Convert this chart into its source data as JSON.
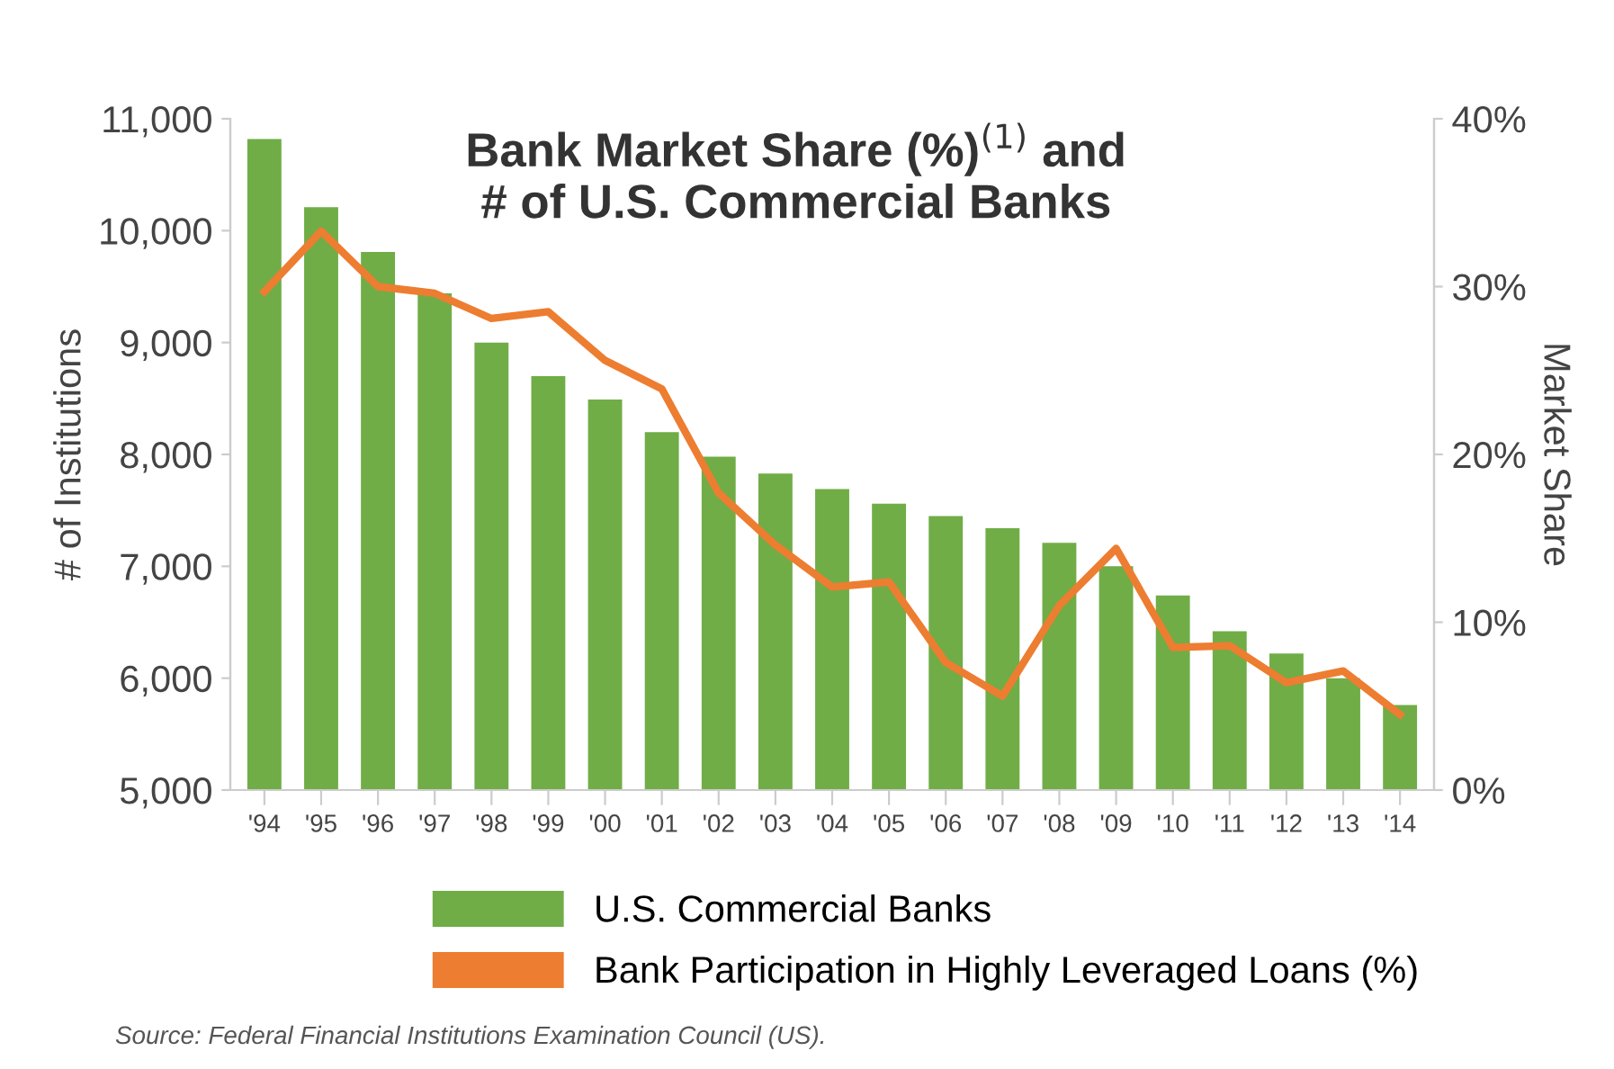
{
  "chart_data": {
    "type": "bar",
    "title": "Bank Market Share (%)$^{(1)}$ and\n# of U.S. Commercial Banks",
    "ylabel": "# of Institutions",
    "y2label": "Market Share",
    "categories": [
      "'94",
      "'95",
      "'96",
      "'97",
      "'98",
      "'99",
      "'00",
      "'01",
      "'02",
      "'03",
      "'04",
      "'05",
      "'06",
      "'07",
      "'08",
      "'09",
      "'10",
      "'11",
      "'12",
      "'13",
      "'14"
    ],
    "series": [
      {
        "name": "U.S. Commercial Banks",
        "color": "#70ad47",
        "values": [
          10820,
          10210,
          9810,
          9440,
          9000,
          8700,
          8490,
          8200,
          7980,
          7830,
          7690,
          7560,
          7450,
          7340,
          7210,
          7000,
          6740,
          6420,
          6220,
          6000,
          5760
        ]
      },
      {
        "name": "Bank Participation in Highly Leveraged Loans (%)",
        "type": "line",
        "axis": "y2",
        "color": "#ed7d31",
        "values": [
          29.7,
          33.3,
          30.0,
          29.6,
          28.1,
          28.5,
          25.6,
          23.9,
          17.7,
          14.6,
          12.1,
          12.4,
          7.6,
          5.6,
          11.0,
          14.4,
          8.5,
          8.6,
          6.4,
          7.1,
          4.5
        ]
      }
    ],
    "ylim": [
      5000,
      11000
    ],
    "yticks": [
      {
        "value": 5000,
        "label": "5,000"
      },
      {
        "value": 6000,
        "label": "6,000"
      },
      {
        "value": 7000,
        "label": "7,000"
      },
      {
        "value": 8000,
        "label": "8,000"
      },
      {
        "value": 9000,
        "label": "9,000"
      },
      {
        "value": 10000,
        "label": "10,000"
      },
      {
        "value": 11000,
        "label": "11,000"
      }
    ],
    "y2lim": [
      0,
      40
    ],
    "y2ticks": [
      {
        "value": 0,
        "label": "0%"
      },
      {
        "value": 10,
        "label": "10%"
      },
      {
        "value": 20,
        "label": "20%"
      },
      {
        "value": 30,
        "label": "30%"
      },
      {
        "value": 40,
        "label": "40%"
      }
    ],
    "grid": false,
    "legend": "bottom",
    "annotations": [
      "Source: Federal Financial Institutions Examination Council (US)."
    ]
  }
}
